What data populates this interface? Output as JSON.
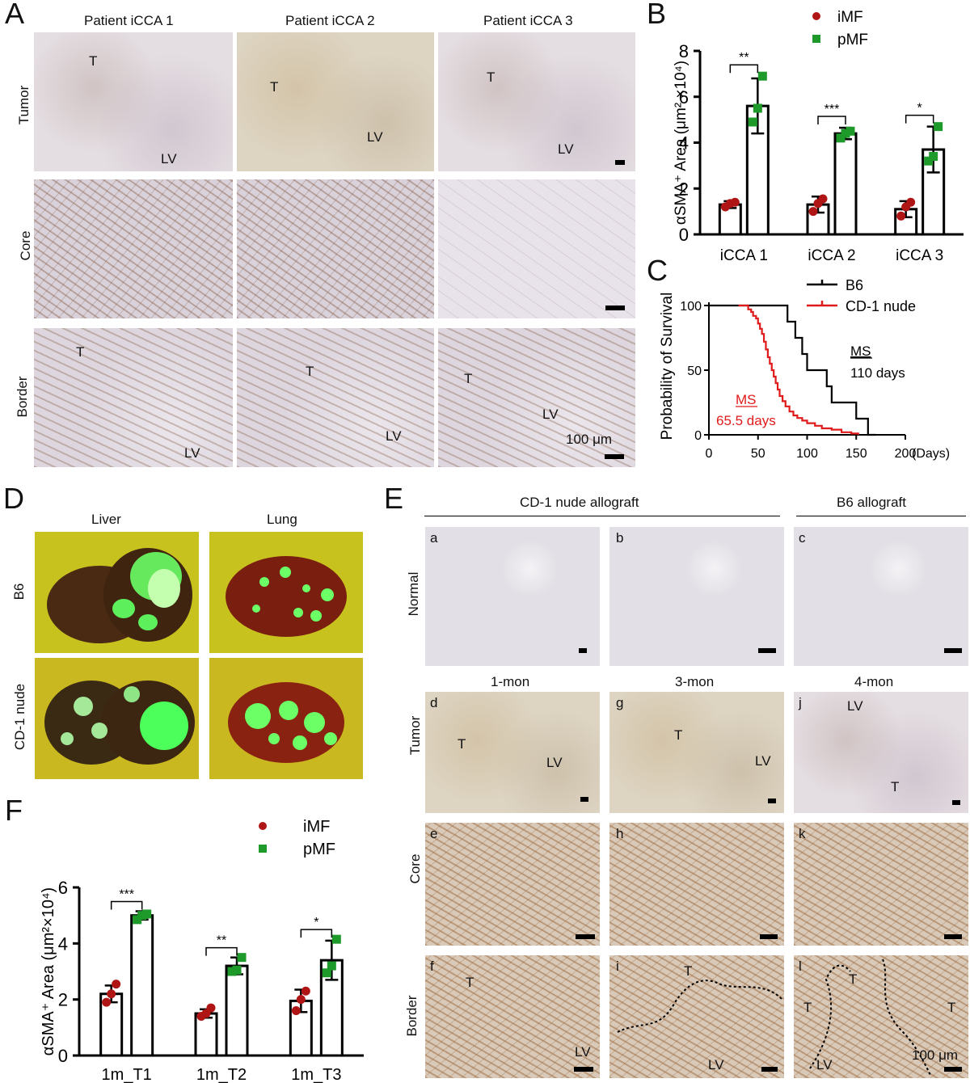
{
  "panels": {
    "A": {
      "letter": "A",
      "col_titles": [
        "Patient iCCA 1",
        "Patient iCCA 2",
        "Patient iCCA 3"
      ],
      "row_titles": [
        "Tumor",
        "Core",
        "Border"
      ],
      "labels": {
        "T": "T",
        "LV": "LV"
      },
      "scale_label": "100 μm"
    },
    "B": {
      "letter": "B",
      "ylabel": "αSMA⁺ Area (μm² ×10⁴)",
      "legend": [
        "iMF",
        "pMF"
      ],
      "sig": [
        "**",
        "***",
        "*"
      ]
    },
    "C": {
      "letter": "C",
      "ylabel": "Probability of Survival",
      "xlabel_unit": "(Days)",
      "legend": [
        "B6",
        "CD-1 nude"
      ],
      "ms_title": "MS",
      "ms_b6": "110 days",
      "ms_nude": "65.5 days"
    },
    "D": {
      "letter": "D",
      "col_titles": [
        "Liver",
        "Lung"
      ],
      "row_titles": [
        "B6",
        "CD-1 nude"
      ]
    },
    "E": {
      "letter": "E",
      "group_titles": [
        "CD-1 nude allograft",
        "B6 allograft"
      ],
      "row_titles": [
        "Normal",
        "Tumor",
        "Core",
        "Border"
      ],
      "time_titles": [
        "1-mon",
        "3-mon",
        "4-mon"
      ],
      "tile_letters": [
        "a",
        "b",
        "c",
        "d",
        "g",
        "j",
        "e",
        "h",
        "k",
        "f",
        "i",
        "l"
      ],
      "scale_label": "100 μm"
    },
    "F": {
      "letter": "F",
      "ylabel": "αSMA⁺ Area (μm²×10⁴)",
      "legend": [
        "iMF",
        "pMF"
      ],
      "sig": [
        "***",
        "**",
        "*"
      ]
    }
  },
  "chart_data": [
    {
      "type": "bar",
      "panel": "B",
      "categories": [
        "iCCA 1",
        "iCCA 2",
        "iCCA 3"
      ],
      "ylabel": "αSMA⁺ Area (μm² ×10⁴)",
      "ylim": [
        0,
        8
      ],
      "yticks": [
        0,
        2,
        4,
        6,
        8
      ],
      "series": [
        {
          "name": "iMF",
          "color": "#b01515",
          "values": [
            1.3,
            1.3,
            1.1
          ],
          "sd": [
            0.15,
            0.35,
            0.35
          ],
          "points": [
            [
              1.2,
              1.35,
              1.4
            ],
            [
              1.0,
              1.35,
              1.55
            ],
            [
              0.8,
              1.2,
              1.4
            ]
          ]
        },
        {
          "name": "pMF",
          "color": "#1e9a2a",
          "values": [
            5.6,
            4.4,
            3.7
          ],
          "sd": [
            1.2,
            0.25,
            1.0
          ],
          "points": [
            [
              4.9,
              5.5,
              6.9
            ],
            [
              4.2,
              4.4,
              4.5
            ],
            [
              3.2,
              3.4,
              4.7
            ]
          ]
        }
      ],
      "significance": [
        "**",
        "***",
        "*"
      ]
    },
    {
      "type": "line",
      "panel": "C",
      "ylabel": "Probability of Survival",
      "xlabel": "(Days)",
      "xlim": [
        0,
        200
      ],
      "ylim": [
        0,
        100
      ],
      "xticks": [
        0,
        50,
        100,
        150,
        200
      ],
      "yticks": [
        0,
        50,
        100
      ],
      "series": [
        {
          "name": "B6",
          "color": "#000000",
          "x": [
            0,
            80,
            80,
            88,
            88,
            95,
            95,
            100,
            100,
            120,
            120,
            125,
            125,
            150,
            150,
            162,
            162,
            170
          ],
          "y": [
            100,
            100,
            87.5,
            87.5,
            75,
            75,
            62.5,
            62.5,
            50,
            50,
            37.5,
            37.5,
            25,
            25,
            12.5,
            12.5,
            0,
            0
          ]
        },
        {
          "name": "CD-1 nude",
          "color": "#e01a1a",
          "x": [
            30,
            38,
            40,
            43,
            45,
            48,
            50,
            52,
            54,
            56,
            58,
            60,
            62,
            64,
            66,
            68,
            70,
            72,
            75,
            78,
            82,
            86,
            90,
            95,
            100,
            108,
            115,
            125,
            135,
            145,
            152
          ],
          "y": [
            100,
            100,
            97,
            95,
            92,
            90,
            86,
            82,
            78,
            72,
            66,
            60,
            55,
            50,
            45,
            40,
            35,
            30,
            26,
            22,
            18,
            15,
            13,
            11,
            9,
            7,
            5,
            4,
            2,
            1,
            0
          ]
        }
      ],
      "annotations": [
        {
          "text": "MS 110 days"
        },
        {
          "text": "MS 65.5 days"
        }
      ]
    },
    {
      "type": "bar",
      "panel": "F",
      "categories": [
        "1m_T1",
        "1m_T2",
        "1m_T3"
      ],
      "ylabel": "αSMA⁺ Area (μm²×10⁴)",
      "ylim": [
        0,
        6
      ],
      "yticks": [
        0,
        2,
        4,
        6
      ],
      "series": [
        {
          "name": "iMF",
          "color": "#b01515",
          "values": [
            2.2,
            1.5,
            1.95
          ],
          "sd": [
            0.3,
            0.15,
            0.4
          ],
          "points": [
            [
              1.9,
              2.2,
              2.55
            ],
            [
              1.4,
              1.5,
              1.7
            ],
            [
              1.6,
              2.0,
              2.3
            ]
          ]
        },
        {
          "name": "pMF",
          "color": "#1e9a2a",
          "values": [
            5.0,
            3.2,
            3.4
          ],
          "sd": [
            0.15,
            0.3,
            0.7
          ],
          "points": [
            [
              4.85,
              5.0,
              5.05
            ],
            [
              3.0,
              3.05,
              3.5
            ],
            [
              2.95,
              3.2,
              4.15
            ]
          ]
        }
      ],
      "significance": [
        "***",
        "**",
        "*"
      ]
    }
  ]
}
